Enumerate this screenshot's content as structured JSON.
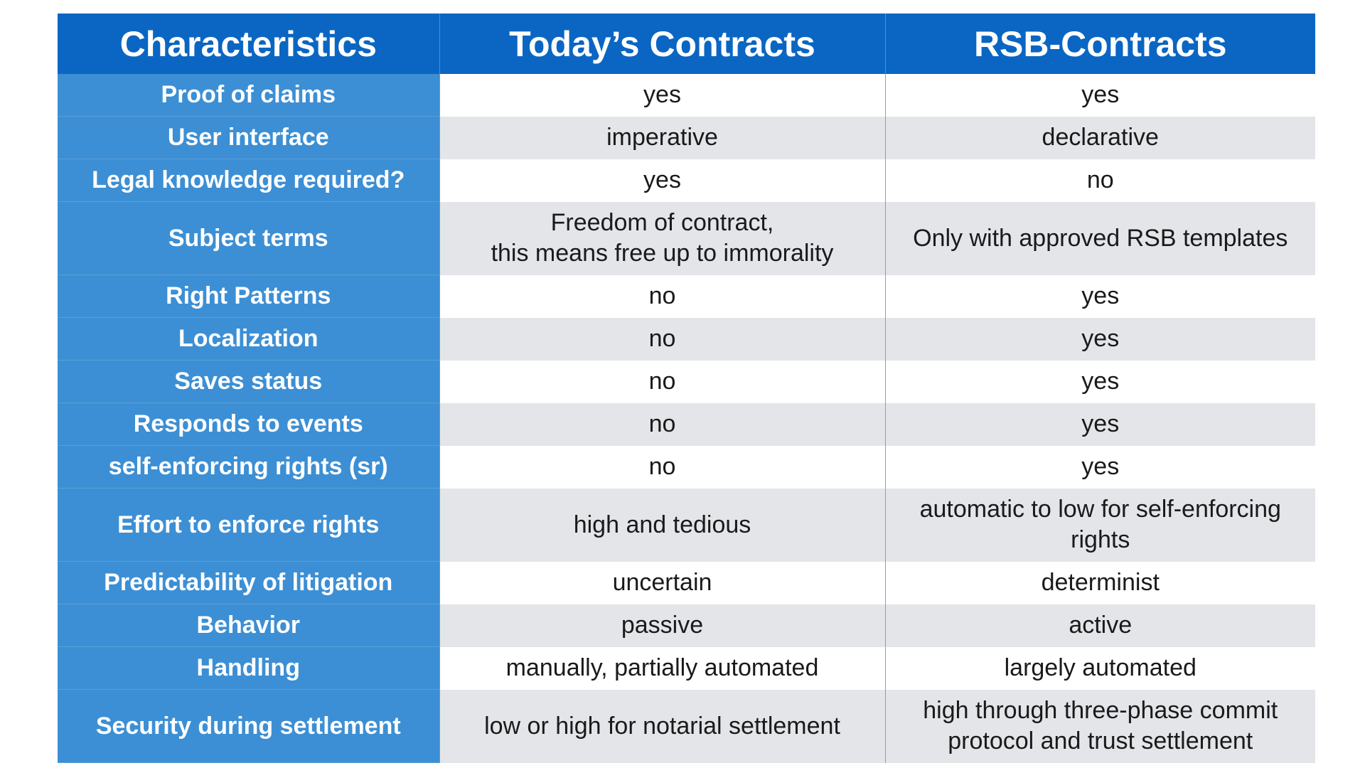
{
  "header": {
    "col1": "Characteristics",
    "col2": "Today’s Contracts",
    "col3": "RSB-Contracts"
  },
  "rows": [
    {
      "label": "Proof of claims",
      "today": "yes",
      "rsb": "yes"
    },
    {
      "label": "User interface",
      "today": "imperative",
      "rsb": "declarative"
    },
    {
      "label": "Legal knowledge required?",
      "today": "yes",
      "rsb": "no"
    },
    {
      "label": "Subject terms",
      "today_line1": "Freedom of contract,",
      "today_line2": "this means free up to immorality",
      "rsb": "Only with approved RSB templates"
    },
    {
      "label": "Right Patterns",
      "today": "no",
      "rsb": "yes"
    },
    {
      "label": "Localization",
      "today": "no",
      "rsb": "yes"
    },
    {
      "label": "Saves status",
      "today": "no",
      "rsb": "yes"
    },
    {
      "label": "Responds to events",
      "today": "no",
      "rsb": "yes"
    },
    {
      "label": "self-enforcing rights (sr)",
      "today": "no",
      "rsb": "yes"
    },
    {
      "label": "Effort to enforce rights",
      "today": "high and tedious",
      "rsb_line1": "automatic to low for self-enforcing",
      "rsb_line2": "rights"
    },
    {
      "label": "Predictability of litigation",
      "today": "uncertain",
      "rsb": "determinist"
    },
    {
      "label": "Behavior",
      "today": "passive",
      "rsb": "active"
    },
    {
      "label": "Handling",
      "today": "manually, partially automated",
      "rsb": "largely automated"
    },
    {
      "label": "Security during settlement",
      "today": "low or high for notarial settlement",
      "rsb_line1": "high through three-phase commit",
      "rsb_line2": "protocol and trust settlement"
    }
  ],
  "colors": {
    "header_bg": "#0a66c2",
    "label_bg": "#3c8fd4",
    "stripe_bg": "#e4e5e9"
  }
}
